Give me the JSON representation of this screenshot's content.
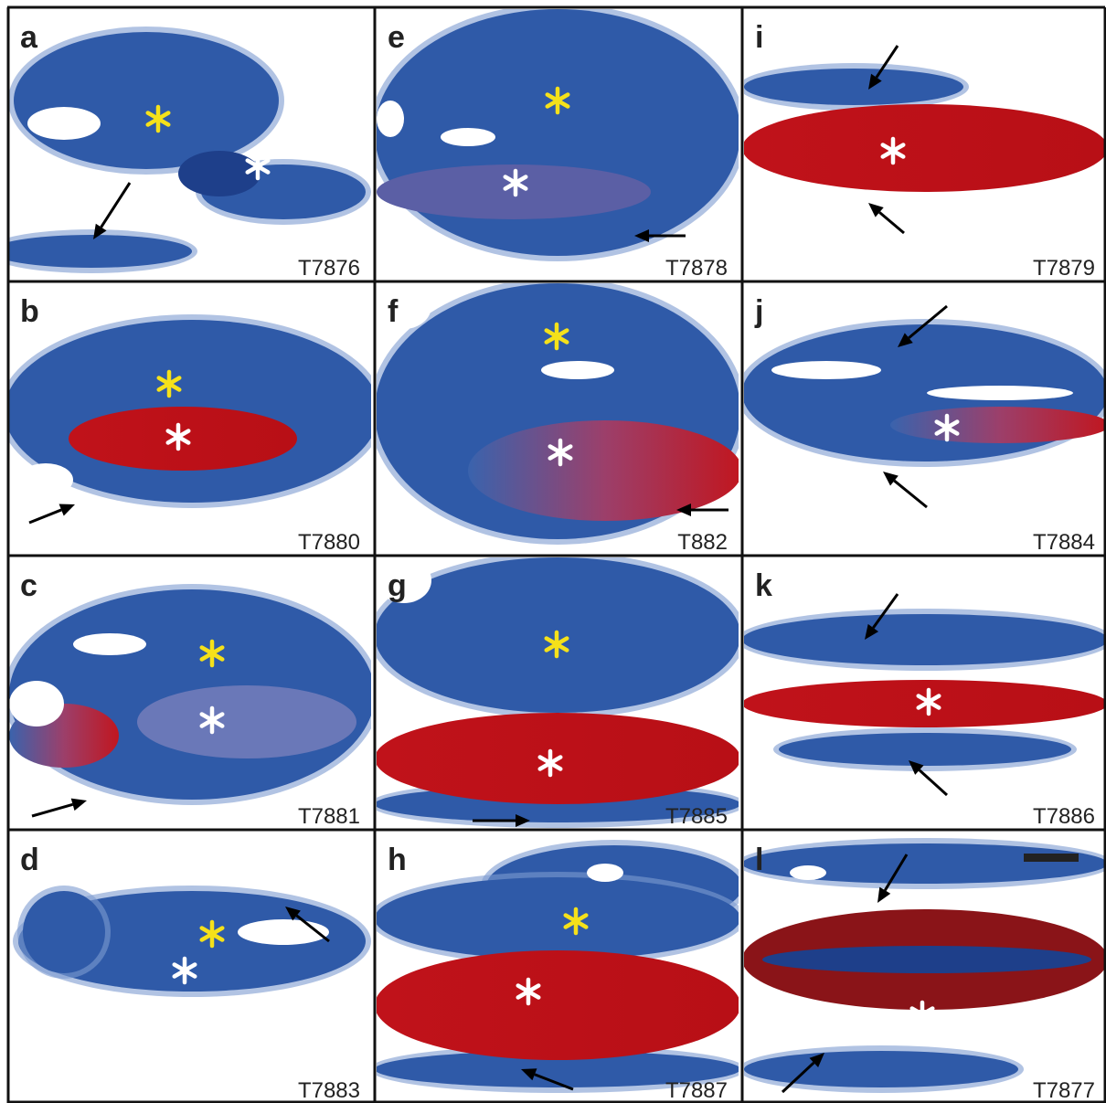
{
  "panels": [
    {
      "label": "a",
      "id": "T7876"
    },
    {
      "label": "b",
      "id": "T7880"
    },
    {
      "label": "c",
      "id": "T7881"
    },
    {
      "label": "d",
      "id": "T7883"
    },
    {
      "label": "e",
      "id": "T7878"
    },
    {
      "label": "f",
      "id": "T882"
    },
    {
      "label": "g",
      "id": "T7885"
    },
    {
      "label": "h",
      "id": "T7887"
    },
    {
      "label": "i",
      "id": "T7879"
    },
    {
      "label": "j",
      "id": "T7884"
    },
    {
      "label": "k",
      "id": "T7886"
    },
    {
      "label": "l",
      "id": "T7877"
    }
  ]
}
